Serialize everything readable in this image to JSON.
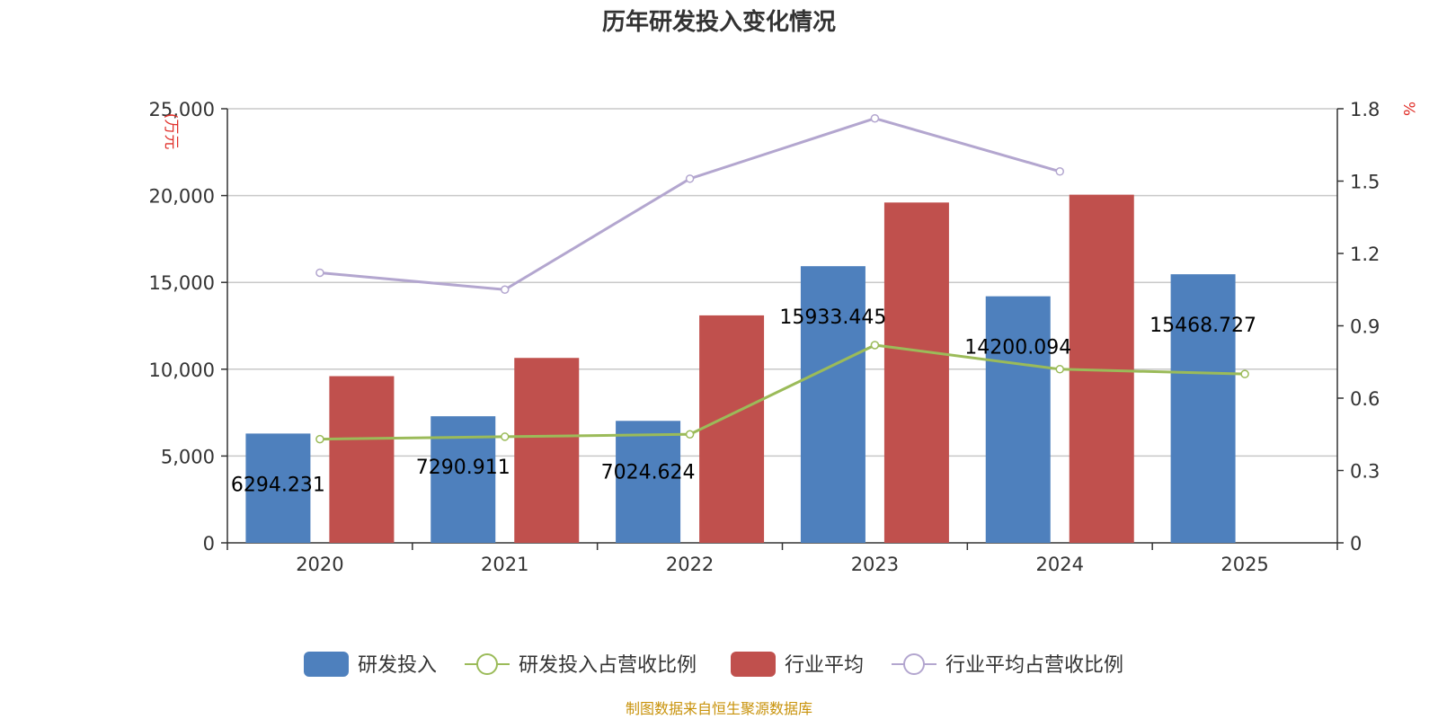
{
  "chart_data": {
    "type": "bar",
    "title": "历年研发投入变化情况",
    "categories": [
      "2020",
      "2021",
      "2022",
      "2023",
      "2024",
      "2025"
    ],
    "y_left": {
      "unit": "(万元",
      "ticks": [
        "0",
        "5,000",
        "10,000",
        "15,000",
        "20,000",
        "25,000"
      ],
      "min": 0,
      "max": 25000
    },
    "y_right": {
      "unit": "%",
      "ticks": [
        "0",
        "0.3",
        "0.6",
        "0.9",
        "1.2",
        "1.5",
        "1.8"
      ],
      "min": 0,
      "max": 1.8
    },
    "grid": true,
    "legend_position": "bottom",
    "series": [
      {
        "name": "研发投入",
        "type": "bar",
        "axis": "left",
        "color": "#4e80bd",
        "values": [
          6294.231,
          7290.911,
          7024.624,
          15933.445,
          14200.094,
          15468.727
        ],
        "labels": [
          "6294.231",
          "7290.911",
          "7024.624",
          "15933.445",
          "14200.094",
          "15468.727"
        ]
      },
      {
        "name": "研发投入占营收比例",
        "type": "line",
        "axis": "right",
        "color": "#9bbb59",
        "values": [
          0.43,
          0.44,
          0.45,
          0.82,
          0.72,
          0.7
        ]
      },
      {
        "name": "行业平均",
        "type": "bar",
        "axis": "left",
        "color": "#c0504d",
        "values": [
          9600,
          10650,
          13100,
          19600,
          20050,
          null
        ]
      },
      {
        "name": "行业平均占营收比例",
        "type": "line",
        "axis": "right",
        "color": "#b3a6cf",
        "values": [
          1.12,
          1.05,
          1.51,
          1.76,
          1.54,
          null
        ]
      }
    ],
    "source": "制图数据来自恒生聚源数据库"
  }
}
